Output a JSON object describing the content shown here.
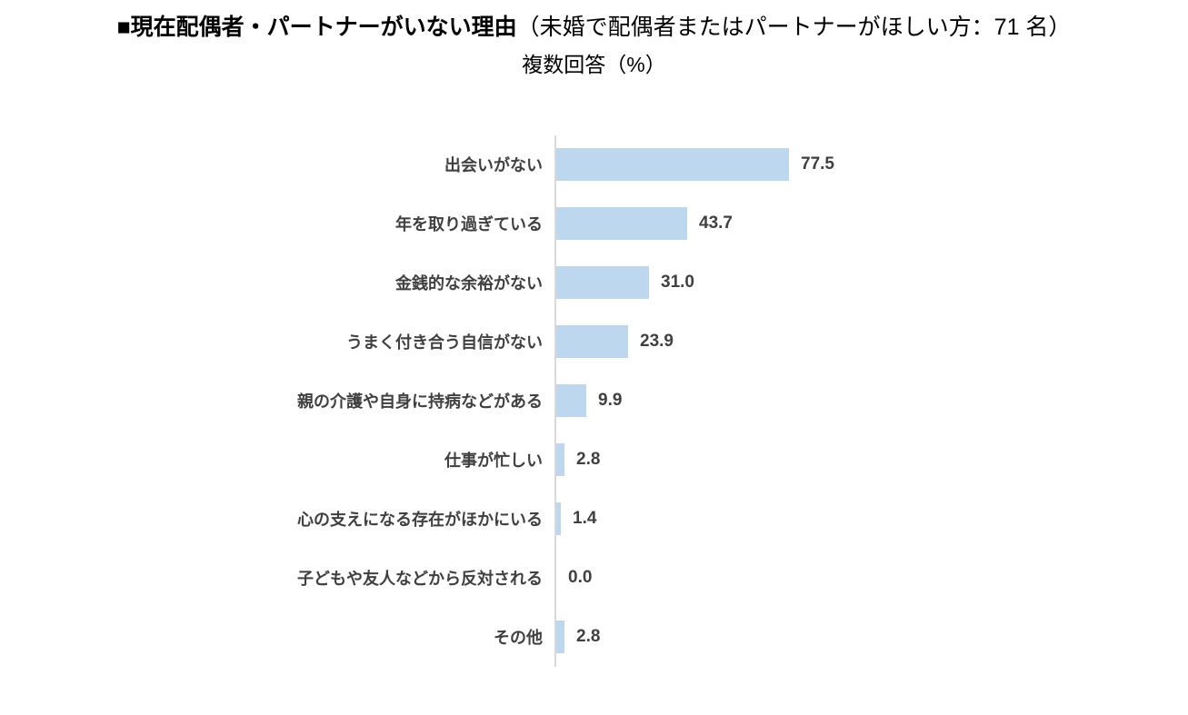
{
  "title": {
    "main": "■現在配偶者・パートナーがいない理由",
    "note": "（未婚で配偶者またはパートナーがほしい方：71 名）",
    "subtitle": "複数回答（%）"
  },
  "chart_data": {
    "type": "bar",
    "orientation": "horizontal",
    "title": "現在配偶者・パートナーがいない理由",
    "subtitle": "複数回答（%）",
    "sample_note": "未婚で配偶者またはパートナーがほしい方：71 名",
    "categories": [
      "出会いがない",
      "年を取り過ぎている",
      "金銭的な余裕がない",
      "うまく付き合う自信がない",
      "親の介護や自身に持病などがある",
      "仕事が忙しい",
      "心の支えになる存在がほかにいる",
      "子どもや友人などから反対される",
      "その他"
    ],
    "values": [
      77.5,
      43.7,
      31.0,
      23.9,
      9.9,
      2.8,
      1.4,
      0.0,
      2.8
    ],
    "xlim": [
      0,
      100
    ],
    "grid": false,
    "legend": "none",
    "value_labels_shown": true,
    "colors": {
      "bar": "#bdd7ee",
      "value_label": "#404040",
      "category_label": "#404040",
      "axis_line": "#d9d9d9",
      "title_text": "#000000",
      "background": "#ffffff"
    }
  }
}
